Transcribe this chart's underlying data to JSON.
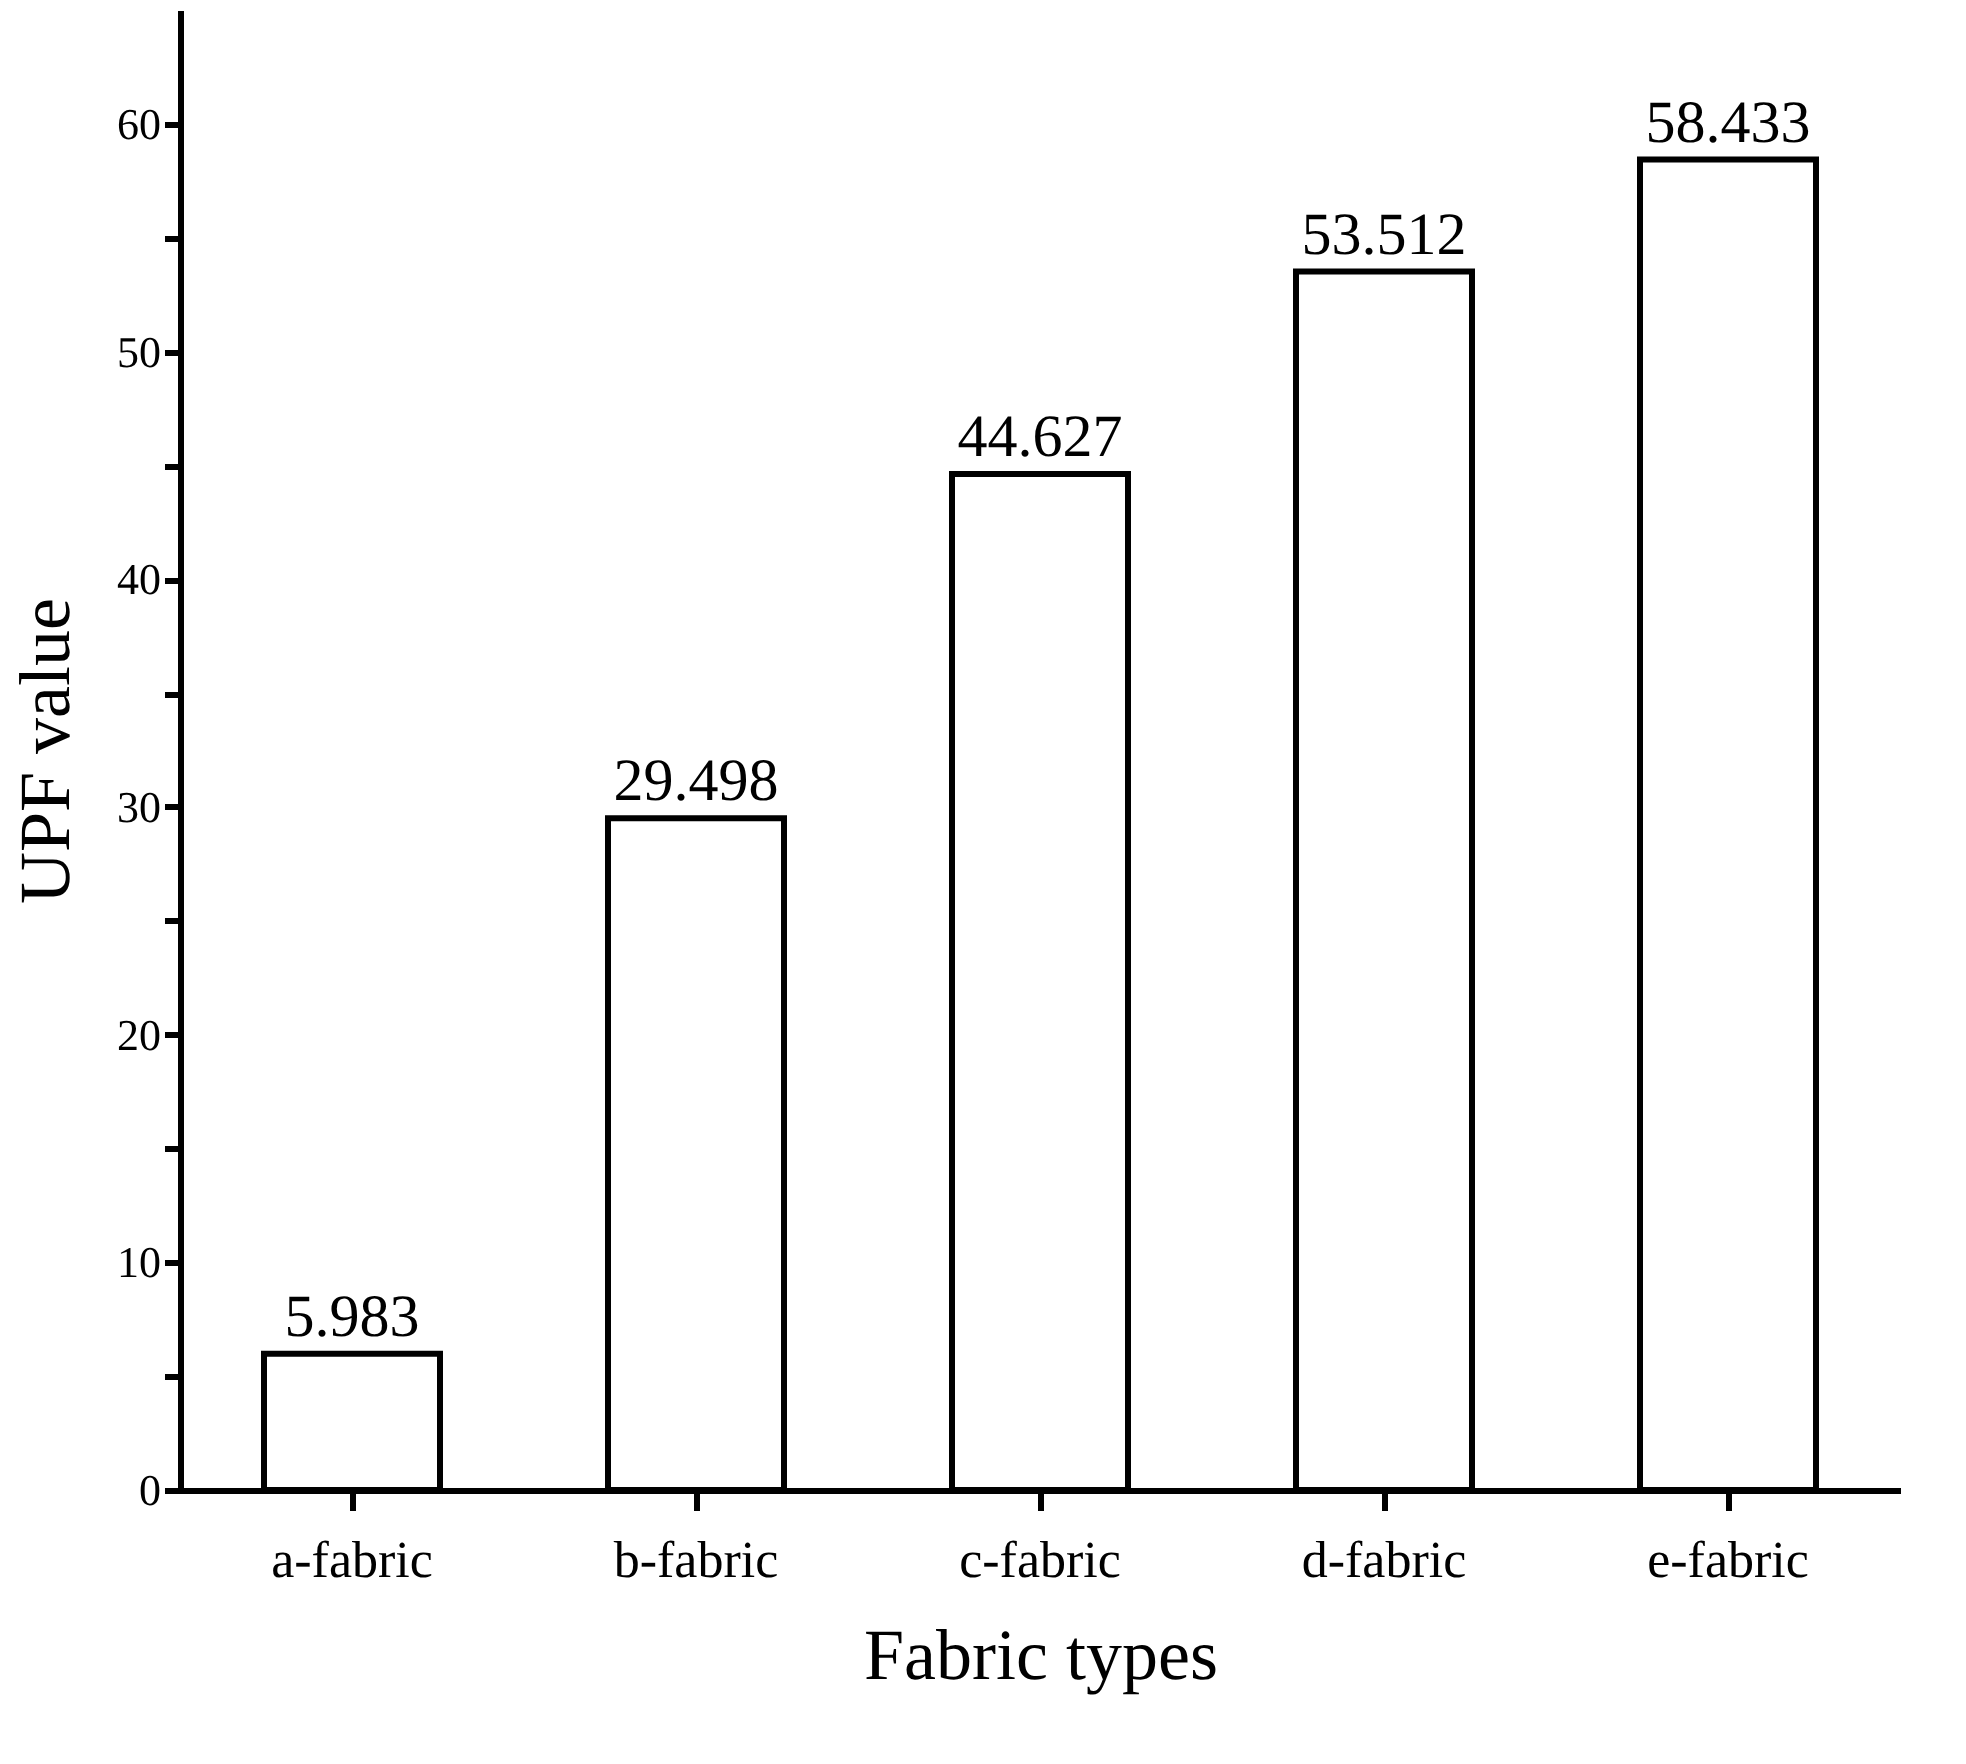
{
  "chart_data": {
    "type": "bar",
    "xlabel": "Fabric types",
    "ylabel": "UPF value",
    "categories": [
      "a-fabric",
      "b-fabric",
      "c-fabric",
      "d-fabric",
      "e-fabric"
    ],
    "values": [
      5.983,
      29.498,
      44.627,
      53.512,
      58.433
    ],
    "color": "#ffffff",
    "ylim": [
      0,
      65
    ],
    "yticks": [
      0,
      {
        "value": 5,
        "label": null
      },
      10,
      {
        "value": 15,
        "label": null
      },
      20,
      {
        "value": 25,
        "label": null
      },
      30,
      {
        "value": 35,
        "label": null
      },
      40,
      {
        "value": 45,
        "label": null
      },
      50,
      {
        "value": 55,
        "label": null
      },
      60
    ],
    "data_labels": true,
    "grid": false
  }
}
